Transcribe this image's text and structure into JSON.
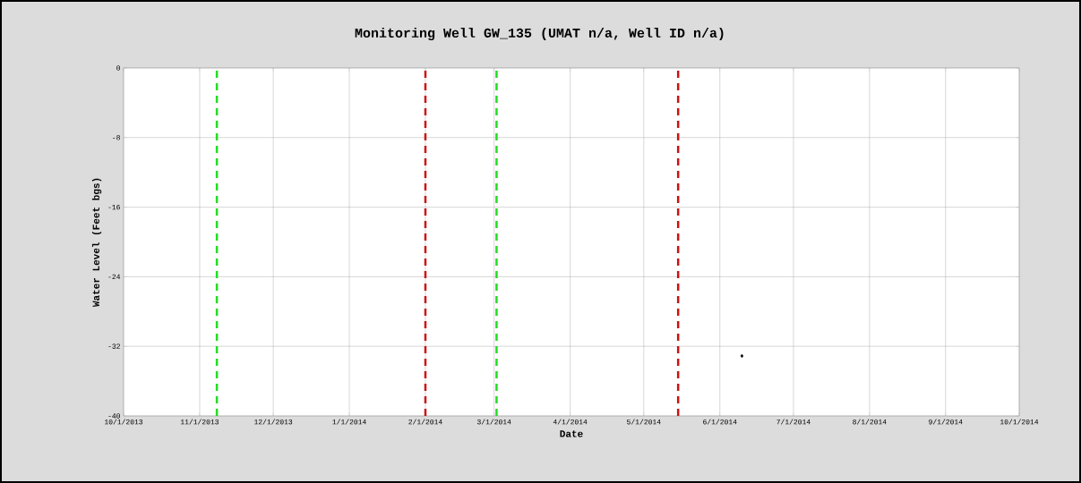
{
  "chart_data": {
    "type": "scatter",
    "title": "Monitoring Well GW_135 (UMAT n/a, Well ID n/a)",
    "xlabel": "Date",
    "ylabel": "Water Level (Feet bgs)",
    "x": [
      "2014-06-10"
    ],
    "values": [
      -33.1
    ],
    "color": "#000000",
    "marker": "diamond",
    "grid": true,
    "xlim": [
      "2013-10-01",
      "2014-10-01"
    ],
    "xticks": [
      {
        "value": "2013-10-01",
        "label": "10/1/2013"
      },
      {
        "value": "2013-11-01",
        "label": "11/1/2013"
      },
      {
        "value": "2013-12-01",
        "label": "12/1/2013"
      },
      {
        "value": "2014-01-01",
        "label": "1/1/2014"
      },
      {
        "value": "2014-02-01",
        "label": "2/1/2014"
      },
      {
        "value": "2014-03-01",
        "label": "3/1/2014"
      },
      {
        "value": "2014-04-01",
        "label": "4/1/2014"
      },
      {
        "value": "2014-05-01",
        "label": "5/1/2014"
      },
      {
        "value": "2014-06-01",
        "label": "6/1/2014"
      },
      {
        "value": "2014-07-01",
        "label": "7/1/2014"
      },
      {
        "value": "2014-08-01",
        "label": "8/1/2014"
      },
      {
        "value": "2014-09-01",
        "label": "9/1/2014"
      },
      {
        "value": "2014-10-01",
        "label": "10/1/2014"
      }
    ],
    "ylim": [
      -40,
      0
    ],
    "yticks": [
      -40,
      -32,
      -24,
      -16,
      -8,
      0
    ],
    "ref_lines": [
      {
        "axis": "x",
        "value": "2013-11-08",
        "color": "#22dd22",
        "line_style": "dashed"
      },
      {
        "axis": "x",
        "value": "2014-02-01",
        "color": "#cc1111",
        "line_style": "dashed"
      },
      {
        "axis": "x",
        "value": "2014-03-02",
        "color": "#22dd22",
        "line_style": "dashed"
      },
      {
        "axis": "x",
        "value": "2014-05-15",
        "color": "#cc1111",
        "line_style": "dashed"
      }
    ]
  }
}
